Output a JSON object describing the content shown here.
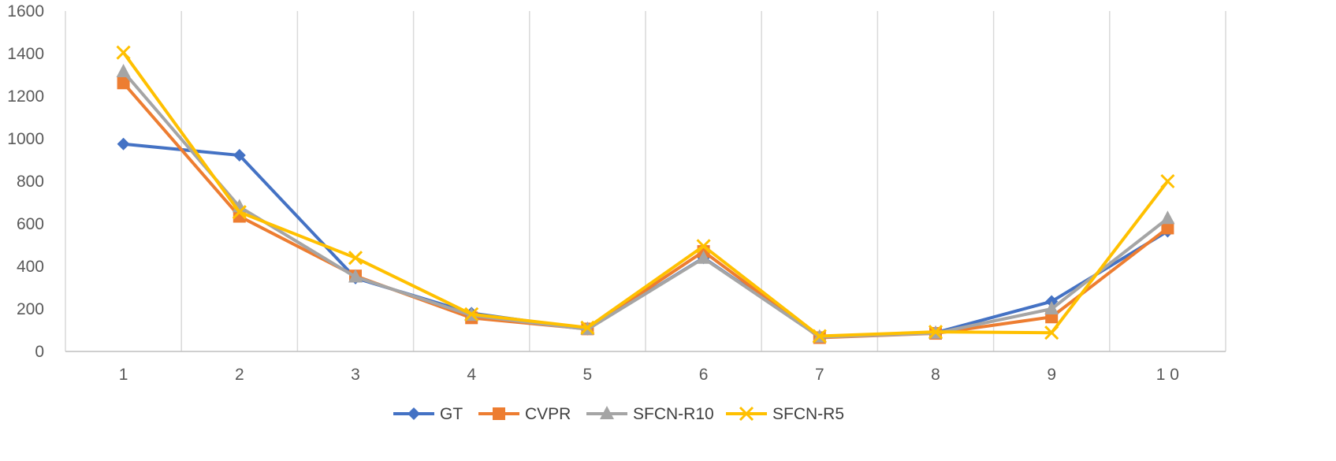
{
  "chart_data": {
    "type": "line",
    "categories": [
      "1",
      "2",
      "3",
      "4",
      "5",
      "6",
      "7",
      "8",
      "9",
      "1 0"
    ],
    "ylim": [
      0,
      1600
    ],
    "yticks": [
      0,
      200,
      400,
      600,
      800,
      1000,
      1200,
      1400,
      1600
    ],
    "grid": "vertical",
    "legend_position": "bottom",
    "series": [
      {
        "name": "GT",
        "color": "#4472C4",
        "marker": "diamond",
        "values": [
          975,
          922,
          345,
          180,
          105,
          440,
          70,
          88,
          235,
          565
        ]
      },
      {
        "name": "CVPR",
        "color": "#ED7D31",
        "marker": "square",
        "values": [
          1262,
          635,
          355,
          158,
          106,
          470,
          65,
          85,
          162,
          580
        ]
      },
      {
        "name": "SFCN-R10",
        "color": "#A5A5A5",
        "marker": "triangle",
        "values": [
          1315,
          680,
          350,
          170,
          104,
          438,
          68,
          86,
          200,
          625
        ]
      },
      {
        "name": "SFCN-R5",
        "color": "#FFC000",
        "marker": "x",
        "values": [
          1405,
          655,
          440,
          175,
          112,
          495,
          72,
          92,
          88,
          800
        ]
      }
    ]
  }
}
